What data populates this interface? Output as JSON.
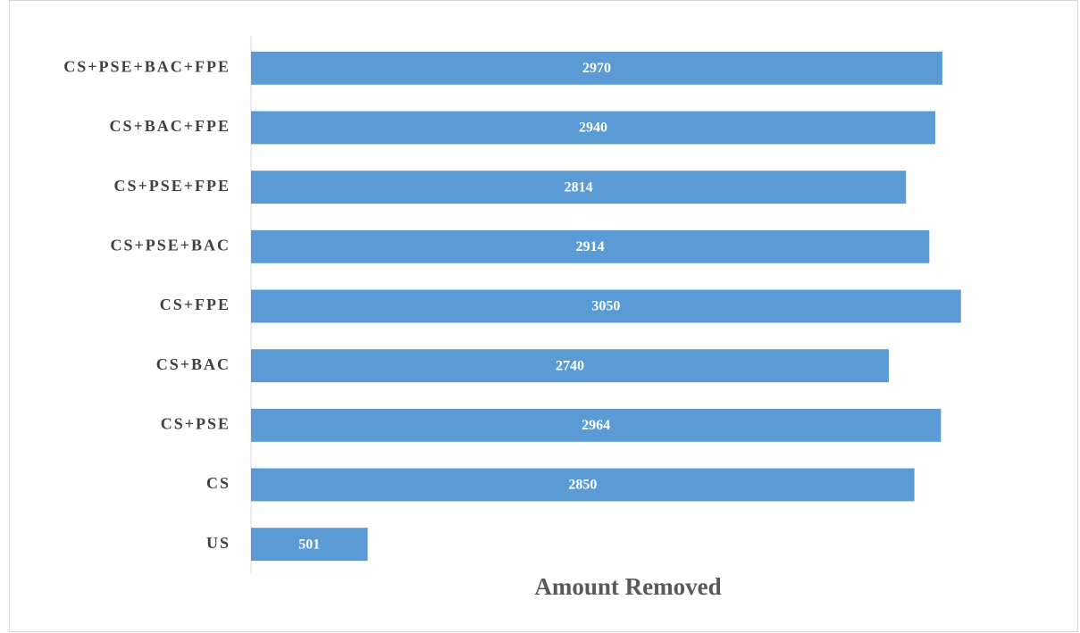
{
  "chart_data": {
    "type": "hbar",
    "x_label": "Amount Removed",
    "categories": [
      "US",
      "CS",
      "CS+PSE",
      "CS+BAC",
      "CS+FPE",
      "CS+PSE+BAC",
      "CS+PSE+FPE",
      "CS+BAC+FPE",
      "CS+PSE+BAC+FPE"
    ],
    "values": [
      501,
      2850,
      2964,
      2740,
      3050,
      2914,
      2814,
      2940,
      2970
    ],
    "color": "#5b9bd5",
    "xlim": [
      0,
      3500
    ]
  }
}
